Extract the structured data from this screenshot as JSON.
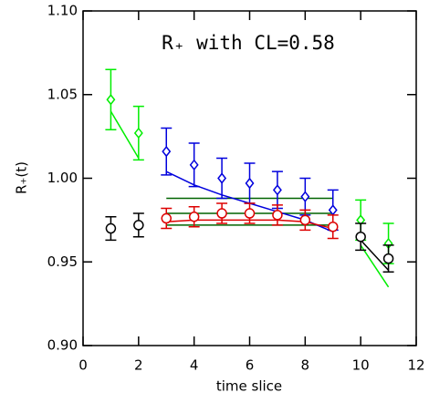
{
  "chart_data": {
    "type": "errorbar",
    "title": "R₊ with CL=0.58",
    "x_label": "time slice",
    "y_label": "R₊(t)",
    "xlim": [
      0,
      12
    ],
    "xticks": [
      0,
      2,
      4,
      6,
      8,
      10,
      12
    ],
    "ylim": [
      0.9,
      1.1
    ],
    "yticks": [
      {
        "value": 0.9,
        "label": "0.90"
      },
      {
        "value": 0.95,
        "label": "0.95"
      },
      {
        "value": 1.0,
        "label": "1.00"
      },
      {
        "value": 1.05,
        "label": "1.05"
      },
      {
        "value": 1.1,
        "label": "1.10"
      }
    ],
    "series": [
      {
        "kind": "line",
        "color": "#006400",
        "x": [
          3,
          9
        ],
        "values": [
          0.988,
          0.988
        ]
      },
      {
        "kind": "line",
        "color": "#006400",
        "x": [
          3,
          9
        ],
        "values": [
          0.979,
          0.979
        ]
      },
      {
        "kind": "line",
        "color": "#006400",
        "x": [
          3,
          9
        ],
        "values": [
          0.972,
          0.972
        ]
      },
      {
        "kind": "line",
        "color": "#00ee00",
        "x": [
          1,
          2
        ],
        "values": [
          1.04,
          1.012
        ]
      },
      {
        "kind": "line",
        "color": "#00ee00",
        "x": [
          10,
          11
        ],
        "values": [
          0.96,
          0.935
        ]
      },
      {
        "kind": "line",
        "color": "#0000dd",
        "x": [
          3,
          4,
          5,
          6,
          7,
          8,
          9
        ],
        "values": [
          1.004,
          0.996,
          0.99,
          0.985,
          0.98,
          0.975,
          0.968
        ]
      },
      {
        "kind": "line",
        "color": "#dd0000",
        "x": [
          3,
          4,
          5,
          6,
          7,
          8,
          9
        ],
        "values": [
          0.974,
          0.975,
          0.975,
          0.975,
          0.975,
          0.974,
          0.97
        ]
      },
      {
        "kind": "line",
        "color": "#000000",
        "x": [
          10,
          11
        ],
        "values": [
          0.963,
          0.945
        ]
      },
      {
        "kind": "errorbar",
        "marker": "diamond",
        "color": "#00ee00",
        "x": [
          1,
          2,
          10,
          11
        ],
        "values": [
          1.047,
          1.027,
          0.975,
          0.961
        ],
        "errors": [
          0.018,
          0.016,
          0.012,
          0.012
        ]
      },
      {
        "kind": "errorbar",
        "marker": "diamond",
        "color": "#0000dd",
        "x": [
          3,
          4,
          5,
          6,
          7,
          8,
          9
        ],
        "values": [
          1.016,
          1.008,
          1.0,
          0.997,
          0.993,
          0.989,
          0.981
        ],
        "errors": [
          0.014,
          0.013,
          0.012,
          0.012,
          0.011,
          0.011,
          0.012
        ]
      },
      {
        "kind": "errorbar",
        "marker": "circle",
        "color": "#dd0000",
        "x": [
          3,
          4,
          5,
          6,
          7,
          8,
          9
        ],
        "values": [
          0.976,
          0.977,
          0.979,
          0.979,
          0.978,
          0.975,
          0.971
        ],
        "errors": [
          0.006,
          0.006,
          0.006,
          0.006,
          0.006,
          0.006,
          0.007
        ]
      },
      {
        "kind": "errorbar",
        "marker": "circle",
        "color": "#000000",
        "x": [
          1,
          2,
          10,
          11
        ],
        "values": [
          0.97,
          0.972,
          0.965,
          0.952
        ],
        "errors": [
          0.007,
          0.007,
          0.008,
          0.008
        ]
      }
    ]
  }
}
